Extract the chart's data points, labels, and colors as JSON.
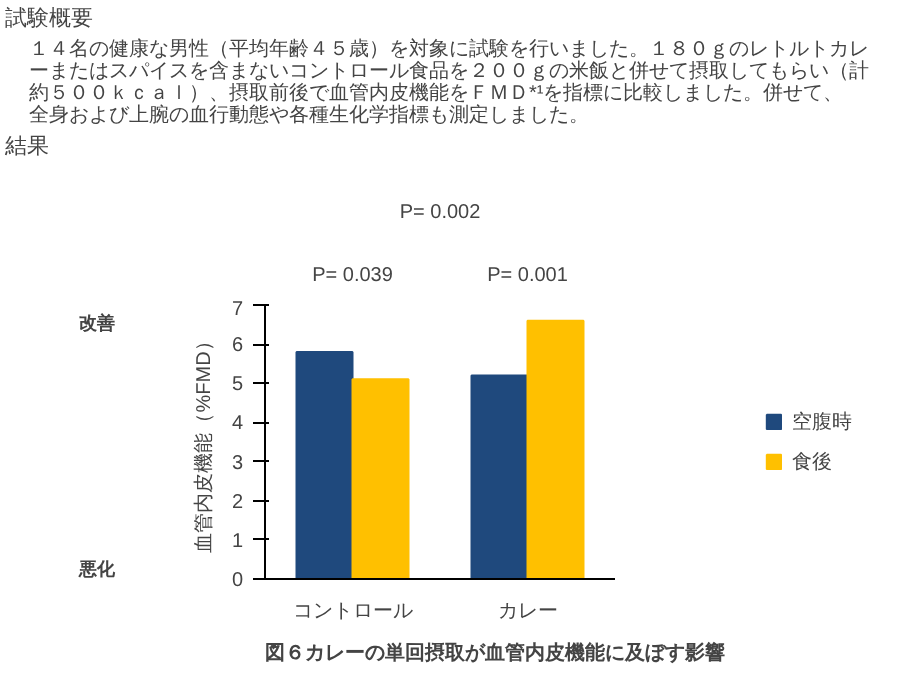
{
  "chart_data": {
    "type": "bar",
    "title": "試験概要",
    "subtitle": "１４名の健康な男性（平均年齢４５歳）を対象に試験を行いました。１８０ｇのレトルトカレーまたはスパイスを含まないコントロール食品を２００ｇの米飯と併せて摂取してもらい（計約５００ｋｃａｌ）、摂取前後で血管内皮機能をＦＭＤ*¹を指標に比較しました。併せて、全身および上腕の血行動態や各種生化学指標も測定しました。",
    "categories": [
      "コントロール",
      "カレー"
    ],
    "series": [
      {
        "name": "空腹時",
        "color": "#1f497d",
        "values": [
          5.8,
          5.2
        ]
      },
      {
        "name": "食後",
        "color": "#ffc000",
        "values": [
          5.1,
          6.6
        ]
      }
    ],
    "ylabel": "血管内皮機能（%FMD）",
    "ylim": [
      0,
      7
    ],
    "yticks": [
      0,
      1,
      2,
      3,
      4,
      5,
      6,
      7
    ],
    "legend": "right",
    "grid": false,
    "annotations": [
      "結果",
      "図６カレーの単回摂取が血管内皮機能に及ぼす影響",
      "改善",
      "悪化",
      "P= 0.039",
      "P= 0.001",
      "P= 0.002"
    ]
  }
}
